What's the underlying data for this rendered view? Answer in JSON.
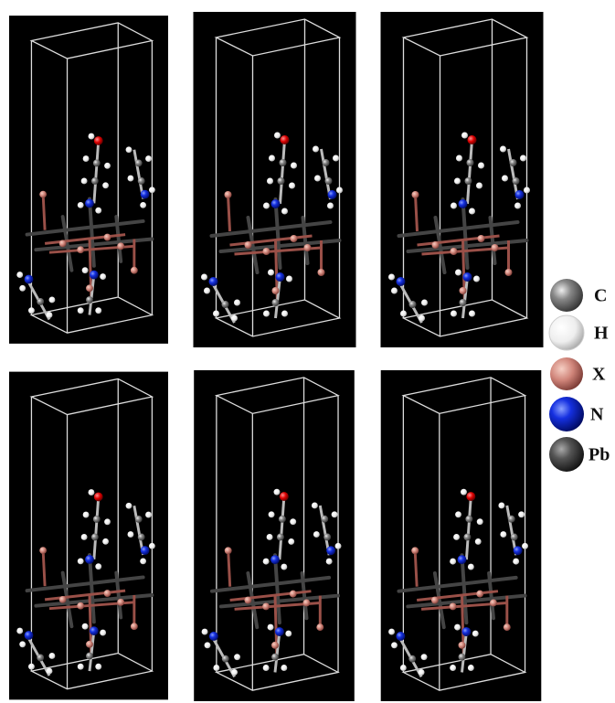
{
  "legend": {
    "items": [
      {
        "label": "C"
      },
      {
        "label": "H"
      },
      {
        "label": "X"
      },
      {
        "label": "N"
      },
      {
        "label": "Pb"
      }
    ]
  }
}
